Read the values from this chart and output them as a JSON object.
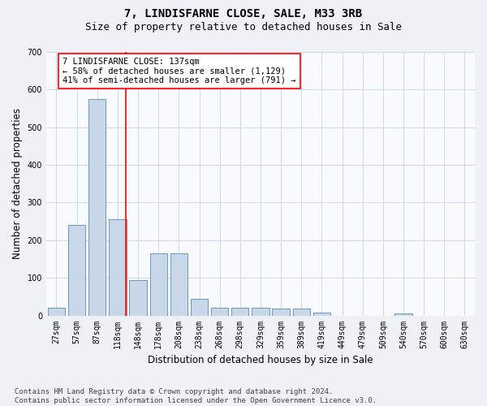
{
  "title": "7, LINDISFARNE CLOSE, SALE, M33 3RB",
  "subtitle": "Size of property relative to detached houses in Sale",
  "xlabel": "Distribution of detached houses by size in Sale",
  "ylabel": "Number of detached properties",
  "footer": "Contains HM Land Registry data © Crown copyright and database right 2024.\nContains public sector information licensed under the Open Government Licence v3.0.",
  "bar_labels": [
    "27sqm",
    "57sqm",
    "87sqm",
    "118sqm",
    "148sqm",
    "178sqm",
    "208sqm",
    "238sqm",
    "268sqm",
    "298sqm",
    "329sqm",
    "359sqm",
    "389sqm",
    "419sqm",
    "449sqm",
    "479sqm",
    "509sqm",
    "540sqm",
    "570sqm",
    "600sqm",
    "630sqm"
  ],
  "bar_values": [
    20,
    240,
    575,
    255,
    95,
    165,
    165,
    45,
    20,
    20,
    20,
    18,
    18,
    8,
    0,
    0,
    0,
    5,
    0,
    0,
    0
  ],
  "bar_color": "#c8d8e8",
  "bar_edge_color": "#6699bb",
  "ylim": [
    0,
    700
  ],
  "yticks": [
    0,
    100,
    200,
    300,
    400,
    500,
    600,
    700
  ],
  "vline_x": 3.42,
  "annotation_text": "7 LINDISFARNE CLOSE: 137sqm\n← 58% of detached houses are smaller (1,129)\n41% of semi-detached houses are larger (791) →",
  "annotation_box_color": "white",
  "annotation_edge_color": "red",
  "vline_color": "red",
  "background_color": "#eef2f7",
  "plot_bg_color": "#f8fafd",
  "grid_color": "#ccd8e8",
  "title_fontsize": 10,
  "subtitle_fontsize": 9,
  "axis_label_fontsize": 8.5,
  "tick_fontsize": 7,
  "annotation_fontsize": 7.5,
  "footer_fontsize": 6.5
}
